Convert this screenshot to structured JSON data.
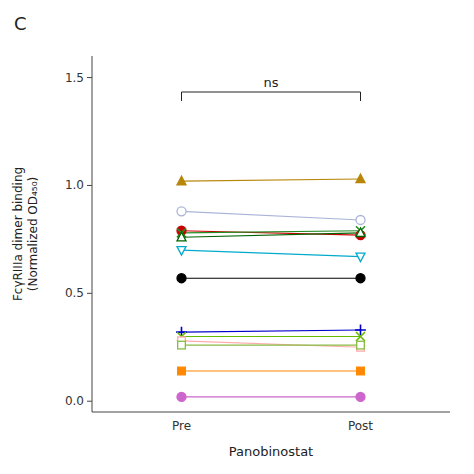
{
  "chart_data": {
    "type": "line",
    "title": "C",
    "ylabel": "FcγRIIIa dimer binding\n(Normalized OD₄₅₀)",
    "xlabel": "Panobinostat",
    "categories": [
      "Pre",
      "Post"
    ],
    "ylim": [
      -0.05,
      1.6
    ],
    "yticks": [
      {
        "value": 0.0,
        "label": "0.0"
      },
      0.5,
      {
        "value": 1.0,
        "label": "1.0"
      },
      1.5
    ],
    "grid": false,
    "annotations": [
      "ns"
    ],
    "series": [
      {
        "values": [
          1.02,
          1.03
        ],
        "color": "#b8860b",
        "marker": "triangle-up"
      },
      {
        "values": [
          0.88,
          0.84
        ],
        "color": "#aab4d8",
        "marker": "circle-open"
      },
      {
        "values": [
          0.79,
          0.77
        ],
        "color": "#cc0000",
        "marker": "circle"
      },
      {
        "values": [
          0.78,
          0.79
        ],
        "color": "#228B22",
        "marker": "x"
      },
      {
        "values": [
          0.76,
          0.78
        ],
        "color": "#006400",
        "marker": "triangle-up-open"
      },
      {
        "values": [
          0.7,
          0.67
        ],
        "color": "#00aacc",
        "marker": "triangle-down-open"
      },
      {
        "values": [
          0.57,
          0.57
        ],
        "color": "#000000",
        "marker": "circle"
      },
      {
        "values": [
          0.32,
          0.33
        ],
        "color": "#0000cc",
        "marker": "plus"
      },
      {
        "values": [
          0.3,
          0.3
        ],
        "color": "#66bb00",
        "marker": "x"
      },
      {
        "values": [
          0.28,
          0.25
        ],
        "color": "#ffaaaa",
        "marker": "square-open"
      },
      {
        "values": [
          0.26,
          0.26
        ],
        "color": "#88bb44",
        "marker": "square-open"
      },
      {
        "values": [
          0.14,
          0.14
        ],
        "color": "#ff8800",
        "marker": "square"
      },
      {
        "values": [
          0.02,
          0.02
        ],
        "color": "#cc66cc",
        "marker": "circle"
      }
    ]
  }
}
